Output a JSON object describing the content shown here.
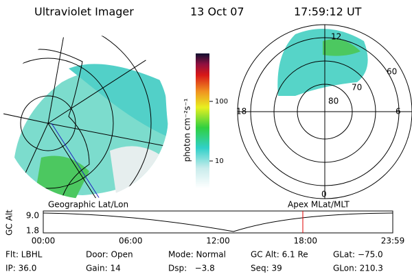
{
  "header": {
    "title": "Ultraviolet Imager",
    "date": "13 Oct 07",
    "time": "17:59:12 UT"
  },
  "colorbar": {
    "label": "photon cm⁻²s⁻¹",
    "ticks": [
      "100",
      "10"
    ]
  },
  "polar": {
    "labels": [
      "12",
      "60",
      "70",
      "80",
      "18",
      "6",
      "0"
    ]
  },
  "orbit": {
    "left_label": "Geographic Lat/Lon",
    "right_label": "Apex MLat/MLT",
    "y_label": "GC Alt",
    "yticks": [
      "9.0",
      "1.8"
    ],
    "xticks": [
      "00:00",
      "06:00",
      "12:00",
      "18:00",
      "23:59"
    ]
  },
  "info": {
    "rows": [
      [
        "Flt: LBHL",
        "Door: Open",
        "Mode: Normal",
        "GC Alt: 6.1 Re",
        "GLat: −75.0"
      ],
      [
        "IP: 36.0",
        "Gain: 14",
        "Dsp:   −3.8",
        "Seq: 39",
        "GLon: 210.3"
      ]
    ]
  }
}
